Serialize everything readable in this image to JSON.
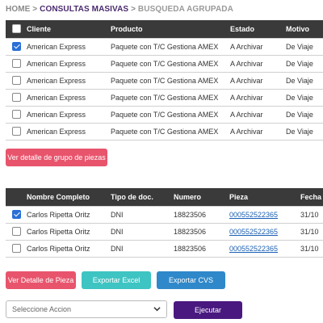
{
  "breadcrumb": {
    "home": "HOME",
    "sep1": ">",
    "current": "CONSULTAS MASIVAS",
    "sep2": ">",
    "last": "BUSQUEDA AGRUPADA"
  },
  "groups_table": {
    "headers": [
      "Cliente",
      "Producto",
      "Estado",
      "Motivo"
    ],
    "rows": [
      {
        "checked": true,
        "cliente": "American Express",
        "producto": "Paquete con T/C Gestiona AMEX",
        "estado": "A Archivar",
        "motivo": "De Viaje"
      },
      {
        "checked": false,
        "cliente": "American Express",
        "producto": "Paquete con T/C Gestiona AMEX",
        "estado": "A Archivar",
        "motivo": "De Viaje"
      },
      {
        "checked": false,
        "cliente": "American Express",
        "producto": "Paquete con T/C Gestiona AMEX",
        "estado": "A Archivar",
        "motivo": "De Viaje"
      },
      {
        "checked": false,
        "cliente": "American Express",
        "producto": "Paquete con T/C Gestiona AMEX",
        "estado": "A Archivar",
        "motivo": "De Viaje"
      },
      {
        "checked": false,
        "cliente": "American Express",
        "producto": "Paquete con T/C Gestiona AMEX",
        "estado": "A Archivar",
        "motivo": "De Viaje"
      },
      {
        "checked": false,
        "cliente": "American Express",
        "producto": "Paquete con T/C Gestiona AMEX",
        "estado": "A Archivar",
        "motivo": "De Viaje"
      }
    ]
  },
  "detail_group_button": "Ver detalle de grupo de piezas",
  "pieces_table": {
    "headers": [
      "Nombre Completo",
      "Tipo de doc.",
      "Numero",
      "Pieza",
      "Fecha"
    ],
    "rows": [
      {
        "checked": true,
        "nombre": "Carlos Ripetta Oritz",
        "tipo": "DNI",
        "numero": "18823506",
        "pieza": "000552522365",
        "fecha": "31/10"
      },
      {
        "checked": false,
        "nombre": "Carlos Ripetta Oritz",
        "tipo": "DNI",
        "numero": "18823506",
        "pieza": "000552522365",
        "fecha": "31/10"
      },
      {
        "checked": false,
        "nombre": "Carlos Ripetta Oritz",
        "tipo": "DNI",
        "numero": "18823506",
        "pieza": "000552522365",
        "fecha": "31/10"
      }
    ]
  },
  "actions": {
    "detail_piece": "Ver Detalle de Pieza",
    "export_excel": "Exportar Excel",
    "export_cvs": "Exportar CVS"
  },
  "action_select": {
    "value": "Seleccione Accion",
    "icon": "chevron-down-icon"
  },
  "execute_button": "Ejecutar",
  "colors": {
    "header_bg": "#3a3a3a",
    "pink": "#e8546c",
    "teal": "#3ec4c2",
    "blue": "#2f88c9",
    "purple": "#4a1980",
    "breadcrumb_active": "#4a2a6e",
    "checkbox_checked": "#2a6fd6"
  }
}
